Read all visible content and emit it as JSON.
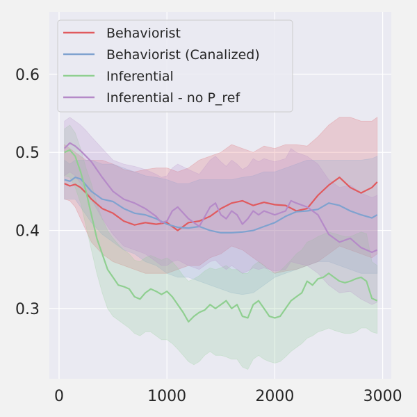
{
  "chart_data": {
    "type": "line",
    "xlim": [
      -90,
      3080
    ],
    "ylim": [
      0.21,
      0.68
    ],
    "grid": true,
    "legend_position": "top-left",
    "x_ticks": [
      {
        "value": 0,
        "label": "0"
      },
      {
        "value": 1000,
        "label": "1000"
      },
      {
        "value": 2000,
        "label": "2000"
      },
      {
        "value": 3000,
        "label": "3000"
      }
    ],
    "y_ticks": [
      {
        "value": 0.3,
        "label": "0.3"
      },
      {
        "value": 0.4,
        "label": "0.4"
      },
      {
        "value": 0.5,
        "label": "0.5"
      },
      {
        "value": 0.6,
        "label": "0.6"
      }
    ],
    "series": [
      {
        "name": "Behaviorist",
        "color": "#e05a5e",
        "x": [
          50,
          100,
          150,
          200,
          250,
          300,
          400,
          500,
          600,
          700,
          800,
          900,
          1000,
          1100,
          1200,
          1300,
          1400,
          1500,
          1600,
          1700,
          1800,
          1900,
          2000,
          2100,
          2200,
          2300,
          2400,
          2500,
          2600,
          2700,
          2800,
          2900,
          2950
        ],
        "y": [
          0.46,
          0.457,
          0.459,
          0.455,
          0.448,
          0.44,
          0.428,
          0.422,
          0.412,
          0.407,
          0.41,
          0.408,
          0.41,
          0.4,
          0.41,
          0.412,
          0.418,
          0.428,
          0.435,
          0.438,
          0.432,
          0.436,
          0.433,
          0.432,
          0.425,
          0.428,
          0.445,
          0.458,
          0.468,
          0.455,
          0.448,
          0.455,
          0.462
        ],
        "lower": [
          0.44,
          0.438,
          0.43,
          0.415,
          0.4,
          0.385,
          0.37,
          0.36,
          0.355,
          0.35,
          0.345,
          0.345,
          0.345,
          0.35,
          0.355,
          0.355,
          0.365,
          0.37,
          0.38,
          0.375,
          0.365,
          0.355,
          0.345,
          0.348,
          0.35,
          0.355,
          0.36,
          0.37,
          0.38,
          0.375,
          0.37,
          0.365,
          0.37
        ],
        "upper": [
          0.51,
          0.505,
          0.5,
          0.495,
          0.49,
          0.49,
          0.49,
          0.485,
          0.478,
          0.475,
          0.478,
          0.48,
          0.48,
          0.475,
          0.48,
          0.49,
          0.495,
          0.5,
          0.51,
          0.505,
          0.5,
          0.508,
          0.505,
          0.51,
          0.51,
          0.508,
          0.52,
          0.535,
          0.545,
          0.545,
          0.54,
          0.54,
          0.545
        ]
      },
      {
        "name": "Behaviorist (Canalized)",
        "color": "#7fa2cf",
        "x": [
          50,
          100,
          150,
          200,
          250,
          300,
          400,
          500,
          600,
          700,
          800,
          900,
          1000,
          1100,
          1200,
          1300,
          1400,
          1500,
          1600,
          1700,
          1800,
          1900,
          2000,
          2100,
          2200,
          2300,
          2400,
          2500,
          2600,
          2700,
          2800,
          2900,
          2950
        ],
        "y": [
          0.465,
          0.463,
          0.468,
          0.466,
          0.458,
          0.45,
          0.44,
          0.437,
          0.428,
          0.422,
          0.42,
          0.415,
          0.408,
          0.404,
          0.403,
          0.405,
          0.4,
          0.397,
          0.397,
          0.398,
          0.4,
          0.405,
          0.41,
          0.418,
          0.424,
          0.425,
          0.427,
          0.435,
          0.432,
          0.425,
          0.42,
          0.416,
          0.42
        ],
        "lower": [
          0.44,
          0.44,
          0.44,
          0.43,
          0.42,
          0.41,
          0.395,
          0.385,
          0.375,
          0.37,
          0.36,
          0.355,
          0.345,
          0.34,
          0.34,
          0.335,
          0.33,
          0.325,
          0.32,
          0.318,
          0.32,
          0.33,
          0.34,
          0.345,
          0.35,
          0.355,
          0.36,
          0.36,
          0.355,
          0.35,
          0.345,
          0.345,
          0.345
        ],
        "upper": [
          0.49,
          0.485,
          0.49,
          0.49,
          0.49,
          0.49,
          0.485,
          0.485,
          0.48,
          0.475,
          0.47,
          0.468,
          0.465,
          0.46,
          0.46,
          0.465,
          0.465,
          0.465,
          0.465,
          0.468,
          0.47,
          0.475,
          0.475,
          0.48,
          0.485,
          0.49,
          0.49,
          0.49,
          0.49,
          0.49,
          0.49,
          0.492,
          0.495
        ]
      },
      {
        "name": "Inferential",
        "color": "#8fcf90",
        "x": [
          50,
          100,
          150,
          200,
          250,
          300,
          350,
          400,
          450,
          500,
          550,
          600,
          650,
          700,
          750,
          800,
          850,
          900,
          950,
          1000,
          1050,
          1100,
          1150,
          1200,
          1250,
          1300,
          1350,
          1400,
          1450,
          1500,
          1550,
          1600,
          1650,
          1700,
          1750,
          1800,
          1850,
          1900,
          1950,
          2000,
          2050,
          2100,
          2150,
          2200,
          2250,
          2300,
          2350,
          2400,
          2450,
          2500,
          2550,
          2600,
          2650,
          2700,
          2750,
          2800,
          2850,
          2900,
          2950
        ],
        "y": [
          0.5,
          0.503,
          0.495,
          0.475,
          0.45,
          0.42,
          0.39,
          0.37,
          0.35,
          0.34,
          0.33,
          0.328,
          0.325,
          0.315,
          0.312,
          0.32,
          0.325,
          0.322,
          0.318,
          0.322,
          0.315,
          0.305,
          0.295,
          0.283,
          0.29,
          0.295,
          0.298,
          0.305,
          0.3,
          0.305,
          0.31,
          0.3,
          0.305,
          0.29,
          0.288,
          0.305,
          0.31,
          0.3,
          0.29,
          0.288,
          0.29,
          0.3,
          0.31,
          0.315,
          0.32,
          0.335,
          0.33,
          0.338,
          0.34,
          0.345,
          0.34,
          0.335,
          0.333,
          0.335,
          0.338,
          0.34,
          0.335,
          0.313,
          0.31
        ],
        "lower": [
          0.47,
          0.468,
          0.455,
          0.435,
          0.405,
          0.375,
          0.345,
          0.32,
          0.3,
          0.29,
          0.285,
          0.28,
          0.275,
          0.268,
          0.265,
          0.27,
          0.27,
          0.265,
          0.26,
          0.26,
          0.255,
          0.248,
          0.24,
          0.232,
          0.228,
          0.232,
          0.24,
          0.245,
          0.24,
          0.24,
          0.238,
          0.235,
          0.235,
          0.225,
          0.222,
          0.235,
          0.24,
          0.235,
          0.232,
          0.23,
          0.232,
          0.238,
          0.245,
          0.25,
          0.255,
          0.262,
          0.265,
          0.27,
          0.272,
          0.275,
          0.272,
          0.27,
          0.268,
          0.268,
          0.27,
          0.275,
          0.275,
          0.27,
          0.268
        ],
        "upper": [
          0.53,
          0.535,
          0.525,
          0.505,
          0.48,
          0.46,
          0.435,
          0.415,
          0.4,
          0.39,
          0.382,
          0.375,
          0.37,
          0.362,
          0.36,
          0.365,
          0.368,
          0.365,
          0.362,
          0.365,
          0.36,
          0.352,
          0.342,
          0.335,
          0.338,
          0.342,
          0.348,
          0.352,
          0.35,
          0.352,
          0.355,
          0.35,
          0.35,
          0.345,
          0.345,
          0.355,
          0.36,
          0.355,
          0.348,
          0.345,
          0.348,
          0.355,
          0.362,
          0.37,
          0.375,
          0.385,
          0.388,
          0.392,
          0.395,
          0.398,
          0.396,
          0.394,
          0.392,
          0.392,
          0.395,
          0.398,
          0.396,
          0.36,
          0.355
        ]
      },
      {
        "name": "Inferential - no P_ref",
        "color": "#b58ac8",
        "x": [
          50,
          100,
          150,
          200,
          250,
          300,
          400,
          500,
          600,
          700,
          800,
          900,
          950,
          1000,
          1050,
          1100,
          1200,
          1300,
          1400,
          1450,
          1500,
          1550,
          1600,
          1650,
          1700,
          1750,
          1800,
          1850,
          1900,
          2000,
          2100,
          2150,
          2200,
          2300,
          2400,
          2500,
          2600,
          2700,
          2800,
          2900,
          2950
        ],
        "y": [
          0.505,
          0.512,
          0.508,
          0.502,
          0.495,
          0.488,
          0.468,
          0.45,
          0.44,
          0.435,
          0.428,
          0.418,
          0.41,
          0.412,
          0.425,
          0.43,
          0.415,
          0.405,
          0.43,
          0.435,
          0.42,
          0.415,
          0.425,
          0.42,
          0.408,
          0.415,
          0.425,
          0.42,
          0.425,
          0.42,
          0.425,
          0.438,
          0.435,
          0.43,
          0.42,
          0.395,
          0.385,
          0.39,
          0.378,
          0.372,
          0.375
        ],
        "lower": [
          0.47,
          0.475,
          0.47,
          0.46,
          0.45,
          0.44,
          0.415,
          0.395,
          0.38,
          0.375,
          0.37,
          0.36,
          0.355,
          0.355,
          0.36,
          0.362,
          0.355,
          0.35,
          0.36,
          0.362,
          0.355,
          0.35,
          0.355,
          0.35,
          0.345,
          0.348,
          0.352,
          0.35,
          0.352,
          0.348,
          0.35,
          0.36,
          0.358,
          0.355,
          0.345,
          0.33,
          0.32,
          0.322,
          0.312,
          0.305,
          0.308
        ],
        "upper": [
          0.54,
          0.545,
          0.54,
          0.535,
          0.528,
          0.52,
          0.505,
          0.49,
          0.485,
          0.482,
          0.478,
          0.472,
          0.468,
          0.47,
          0.48,
          0.485,
          0.478,
          0.472,
          0.49,
          0.495,
          0.488,
          0.482,
          0.49,
          0.485,
          0.478,
          0.482,
          0.492,
          0.488,
          0.492,
          0.488,
          0.492,
          0.505,
          0.5,
          0.495,
          0.485,
          0.465,
          0.455,
          0.458,
          0.448,
          0.442,
          0.445
        ]
      }
    ]
  }
}
